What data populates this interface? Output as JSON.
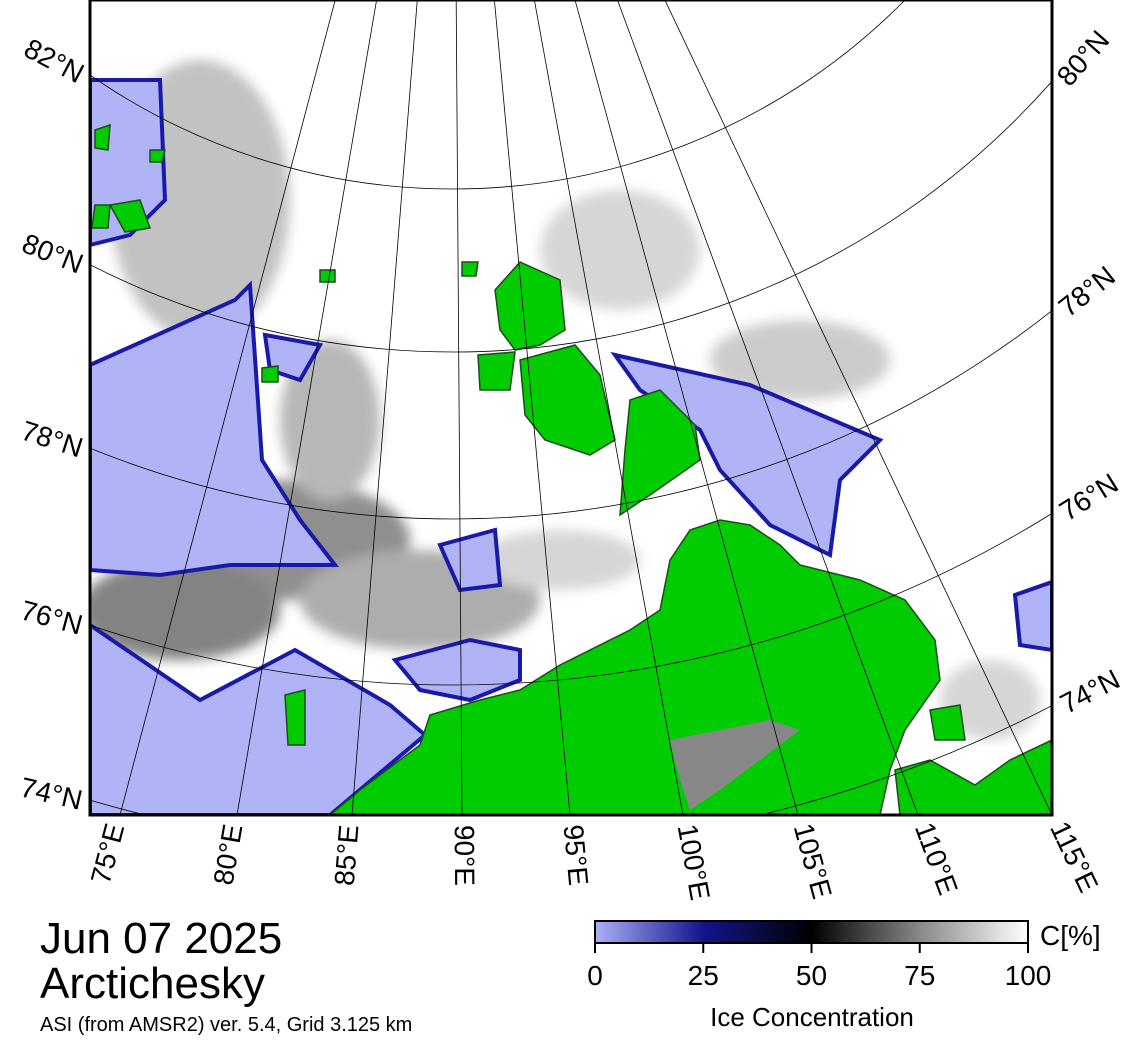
{
  "map": {
    "lat_labels_left": [
      "82°N",
      "80°N",
      "78°N",
      "76°N",
      "74°N"
    ],
    "lat_labels_right": [
      "80°N",
      "78°N",
      "76°N",
      "74°N"
    ],
    "lon_labels": [
      "75°E",
      "80°E",
      "85°E",
      "90°E",
      "95°E",
      "100°E",
      "105°E",
      "110°E",
      "115°E"
    ]
  },
  "date": "Jun 07 2025",
  "region": "Arctichesky",
  "source": "ASI (from AMSR2) ver. 5.4,  Grid 3.125 km",
  "colorbar": {
    "lim": [
      0,
      100
    ],
    "ticks": [
      0,
      25,
      50,
      75,
      100
    ],
    "unit": "C[%]",
    "label": "Ice Concentration"
  }
}
